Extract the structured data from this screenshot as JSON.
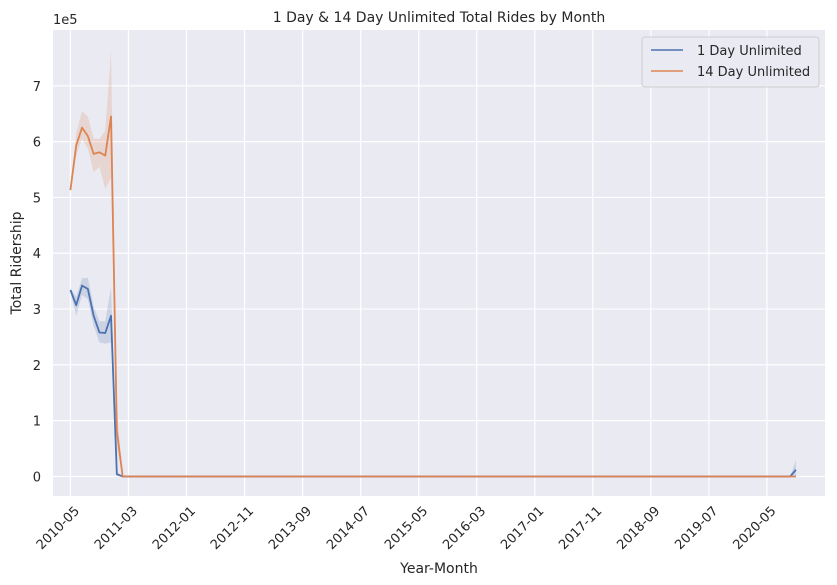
{
  "chart_data": {
    "type": "line",
    "title": "1 Day & 14 Day Unlimited Total Rides by Month",
    "xlabel": "Year-Month",
    "ylabel": "Total Ridership",
    "y_offset_label": "1e5",
    "y_multiplier": 100000,
    "ylim": [
      -0.35,
      8.0
    ],
    "xlim": [
      "2010-02",
      "2021-03"
    ],
    "grid": true,
    "legend_position": "upper-right",
    "x_ticks": [
      "2010-05",
      "2011-03",
      "2012-01",
      "2012-11",
      "2013-09",
      "2014-07",
      "2015-05",
      "2016-03",
      "2017-01",
      "2017-11",
      "2018-09",
      "2019-07",
      "2020-05"
    ],
    "y_ticks": [
      0,
      1,
      2,
      3,
      4,
      5,
      6,
      7
    ],
    "series": [
      {
        "name": "1 Day Unlimited",
        "color": "#4c72b0",
        "points": [
          [
            "2010-05",
            3.34
          ],
          [
            "2010-06",
            3.07
          ],
          [
            "2010-07",
            3.42
          ],
          [
            "2010-08",
            3.36
          ],
          [
            "2010-09",
            2.88
          ],
          [
            "2010-10",
            2.58
          ],
          [
            "2010-11",
            2.57
          ],
          [
            "2010-12",
            2.88
          ],
          [
            "2011-01",
            0.04
          ],
          [
            "2011-02",
            0.0
          ],
          [
            "2011-03",
            0.0
          ],
          [
            "2020-09",
            0.0
          ],
          [
            "2020-10",
            0.12
          ]
        ],
        "band": [
          [
            "2010-05",
            3.3,
            3.38
          ],
          [
            "2010-06",
            2.88,
            3.22
          ],
          [
            "2010-07",
            3.25,
            3.55
          ],
          [
            "2010-08",
            3.18,
            3.56
          ],
          [
            "2010-09",
            2.7,
            3.05
          ],
          [
            "2010-10",
            2.4,
            2.78
          ],
          [
            "2010-11",
            2.38,
            2.78
          ],
          [
            "2010-12",
            2.4,
            3.4
          ],
          [
            "2011-01",
            0.02,
            0.08
          ],
          [
            "2011-02",
            0.0,
            0.0
          ],
          [
            "2011-03",
            0.0,
            0.0
          ],
          [
            "2020-09",
            0.0,
            0.0
          ],
          [
            "2020-10",
            0.0,
            0.3
          ]
        ]
      },
      {
        "name": "14 Day Unlimited",
        "color": "#dd8452",
        "points": [
          [
            "2010-05",
            5.13
          ],
          [
            "2010-06",
            5.93
          ],
          [
            "2010-07",
            6.25
          ],
          [
            "2010-08",
            6.1
          ],
          [
            "2010-09",
            5.78
          ],
          [
            "2010-10",
            5.81
          ],
          [
            "2010-11",
            5.75
          ],
          [
            "2010-12",
            6.45
          ],
          [
            "2011-01",
            0.82
          ],
          [
            "2011-02",
            0.0
          ],
          [
            "2011-03",
            0.0
          ],
          [
            "2020-09",
            0.0
          ],
          [
            "2020-10",
            0.0
          ]
        ],
        "band": [
          [
            "2010-05",
            5.1,
            5.16
          ],
          [
            "2010-06",
            5.75,
            6.15
          ],
          [
            "2010-07",
            6.05,
            6.55
          ],
          [
            "2010-08",
            5.88,
            6.45
          ],
          [
            "2010-09",
            5.45,
            6.05
          ],
          [
            "2010-10",
            5.55,
            6.05
          ],
          [
            "2010-11",
            5.15,
            6.2
          ],
          [
            "2010-12",
            5.35,
            7.62
          ],
          [
            "2011-01",
            0.5,
            1.2
          ],
          [
            "2011-02",
            0.0,
            0.0
          ],
          [
            "2011-03",
            0.0,
            0.0
          ],
          [
            "2020-09",
            0.0,
            0.0
          ],
          [
            "2020-10",
            0.0,
            0.0
          ]
        ]
      }
    ]
  }
}
